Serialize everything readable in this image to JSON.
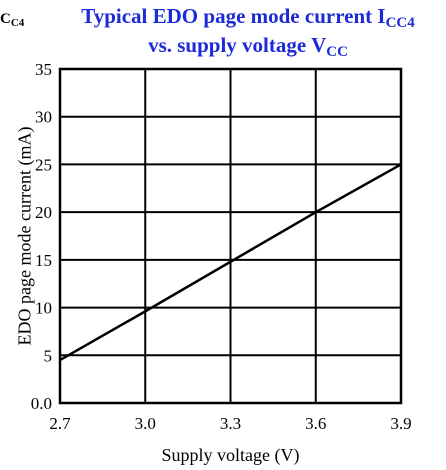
{
  "cropped_left_label": {
    "main": "C",
    "sub": "C4"
  },
  "chart_data": {
    "type": "line",
    "title_line1_main": "Typical EDO page mode current I",
    "title_line1_sub": "CC4",
    "title_line2_main": "vs. supply voltage V",
    "title_line2_sub": "CC",
    "xlabel": "Supply voltage (V)",
    "ylabel": "EDO page mode current (mA)",
    "xlim": [
      2.7,
      3.9
    ],
    "ylim": [
      0,
      35
    ],
    "x_ticks": [
      "2.7",
      "3.0",
      "3.3",
      "3.6",
      "3.9"
    ],
    "y_ticks": [
      "35",
      "30",
      "25",
      "20",
      "15",
      "10",
      "5",
      "0.0"
    ],
    "grid": true,
    "series": [
      {
        "x": [
          2.7,
          3.0,
          3.3,
          3.6,
          3.9
        ],
        "y": [
          4.5,
          9.6,
          14.8,
          20.0,
          25.0
        ]
      }
    ],
    "line_color": "#000000",
    "title_color": "#1d2ad8"
  }
}
